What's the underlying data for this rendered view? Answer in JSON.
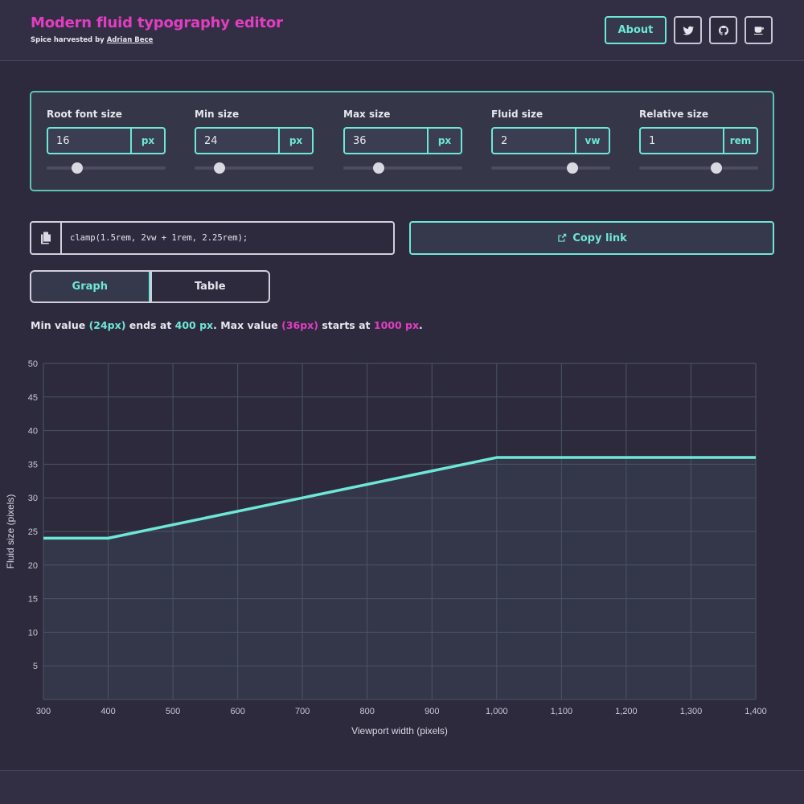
{
  "header": {
    "title": "Modern fluid typography editor",
    "credit_prefix": "Spice harvested by",
    "credit_name": "Adrian Bece",
    "about_label": "About",
    "icons": [
      "twitter-icon",
      "github-icon",
      "coffee-icon"
    ]
  },
  "controls": [
    {
      "label": "Root font size",
      "value": "16",
      "unit": "px",
      "slider_fraction": 0.26
    },
    {
      "label": "Min size",
      "value": "24",
      "unit": "px",
      "slider_fraction": 0.21
    },
    {
      "label": "Max size",
      "value": "36",
      "unit": "px",
      "slider_fraction": 0.3
    },
    {
      "label": "Fluid size",
      "value": "2",
      "unit": "vw",
      "slider_fraction": 0.68
    },
    {
      "label": "Relative size",
      "value": "1",
      "unit": "rem",
      "slider_fraction": 0.65
    }
  ],
  "output": {
    "code": "clamp(1.5rem, 2vw + 1rem, 2.25rem);",
    "copy_link_label": "Copy link"
  },
  "tabs": [
    {
      "label": "Graph",
      "active": true
    },
    {
      "label": "Table",
      "active": false
    }
  ],
  "summary": {
    "t1": "Min value ",
    "min_value": "(24px)",
    "t2": " ends at ",
    "min_end": "400 px",
    "t3": ". Max value ",
    "max_value": "(36px)",
    "t4": " starts at ",
    "max_start": "1000 px",
    "t5": "."
  },
  "colors": {
    "accent": "#6ee7d8",
    "brand": "#e23dc1",
    "background": "#2d2a3e"
  },
  "chart_data": {
    "type": "line",
    "x": [
      300,
      400,
      1000,
      1400
    ],
    "y": [
      24,
      24,
      36,
      36
    ],
    "xlabel": "Viewport width (pixels)",
    "ylabel": "Fluid size (pixels)",
    "xlim": [
      300,
      1400
    ],
    "ylim": [
      0,
      50
    ],
    "x_ticks": [
      300,
      400,
      500,
      600,
      700,
      800,
      900,
      1000,
      1100,
      1200,
      1300,
      1400
    ],
    "x_tick_labels": [
      "300",
      "400",
      "500",
      "600",
      "700",
      "800",
      "900",
      "1,000",
      "1,100",
      "1,200",
      "1,300",
      "1,400"
    ],
    "y_ticks": [
      5,
      10,
      15,
      20,
      25,
      30,
      35,
      40,
      45,
      50
    ],
    "y_tick_labels": [
      "5",
      "10",
      "15",
      "20",
      "25",
      "30",
      "35",
      "40",
      "45",
      "50"
    ],
    "grid": true,
    "area_fill": true
  }
}
